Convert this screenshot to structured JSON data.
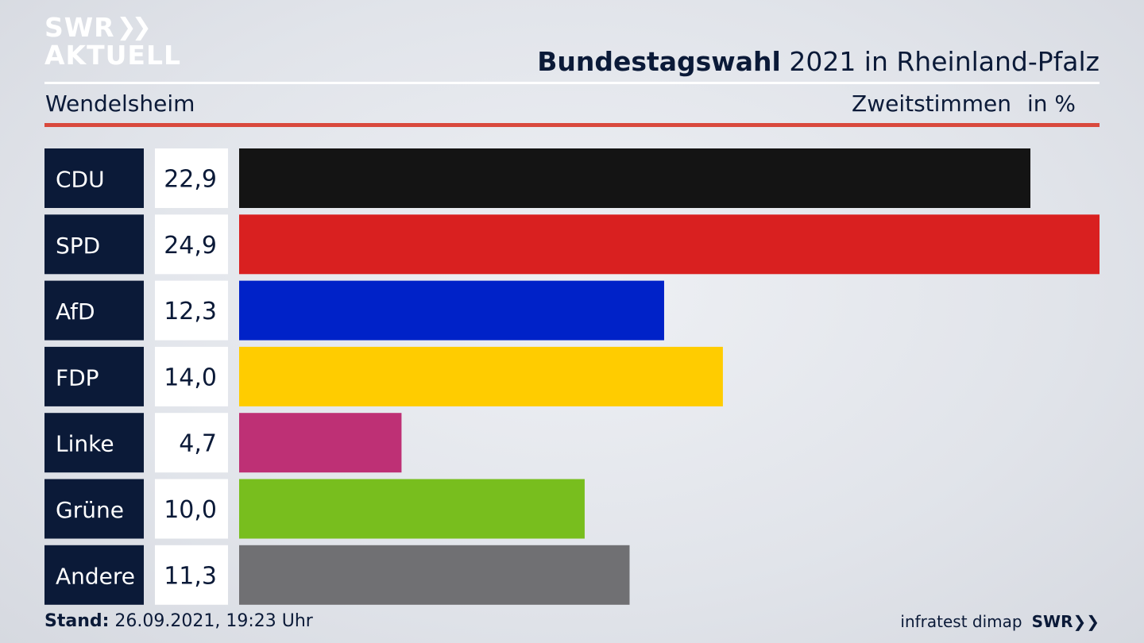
{
  "header": {
    "logo_line1": "SWR",
    "logo_line2": "AKTUELL",
    "title_bold": "Bundestagswahl",
    "title_rest": " 2021 in Rheinland-Pfalz",
    "location": "Wendelsheim",
    "measure": "Zweitstimmen",
    "unit": "in %"
  },
  "chart_data": {
    "type": "bar",
    "orientation": "horizontal",
    "categories": [
      "CDU",
      "SPD",
      "AfD",
      "FDP",
      "Linke",
      "Grüne",
      "Andere"
    ],
    "values": [
      22.9,
      24.9,
      12.3,
      14.0,
      4.7,
      10.0,
      11.3
    ],
    "value_labels": [
      "22,9",
      "24,9",
      "12,3",
      "14,0",
      "4,7",
      "10,0",
      "11,3"
    ],
    "colors": [
      "#141414",
      "#d92020",
      "#0022c8",
      "#ffcc00",
      "#be3075",
      "#78be1e",
      "#707073"
    ],
    "xlim": [
      0,
      24.9
    ],
    "grid": false
  },
  "footer": {
    "stand_label": "Stand:",
    "stand_value": " 26.09.2021, 19:23 Uhr",
    "source": "infratest dimap",
    "brand": "SWR"
  },
  "colors": {
    "label_box": "#0b1a38",
    "value_box": "#ffffff",
    "accent_rule": "#d9493d"
  }
}
